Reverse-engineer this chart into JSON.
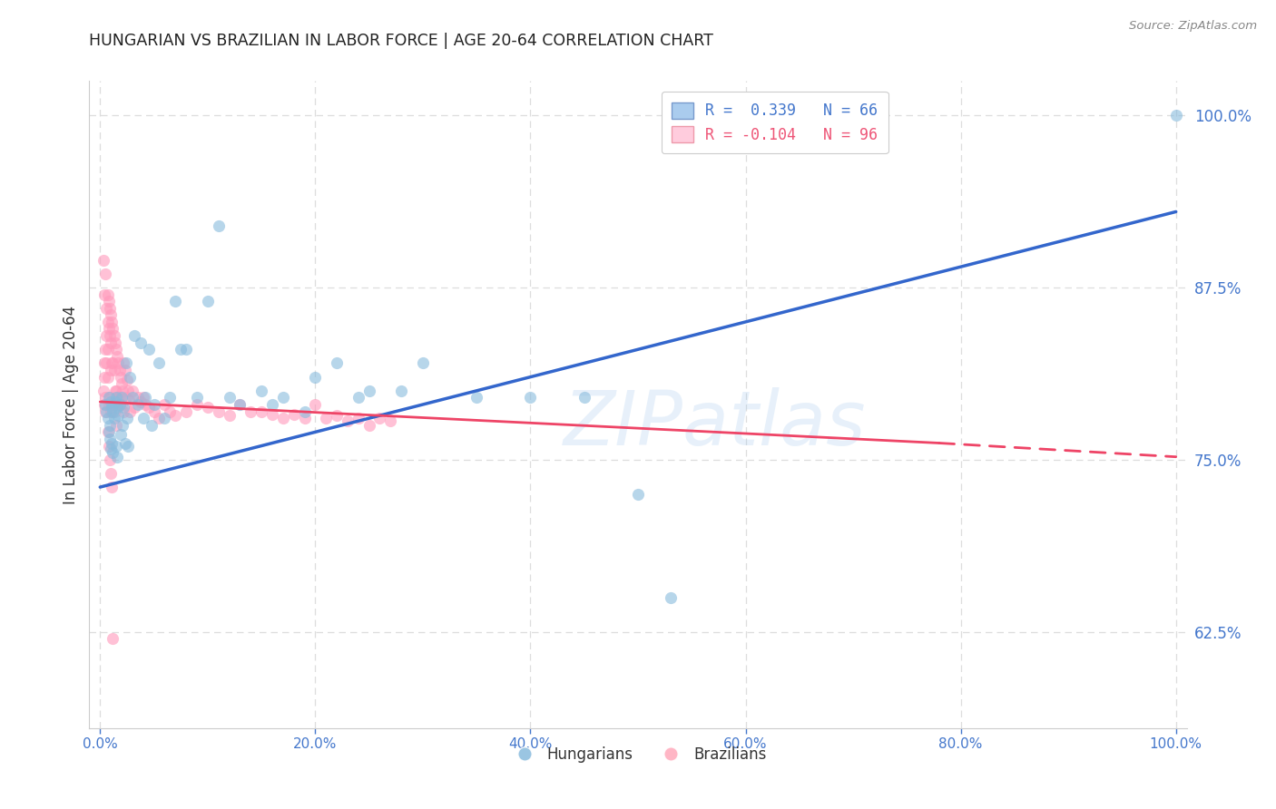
{
  "title": "HUNGARIAN VS BRAZILIAN IN LABOR FORCE | AGE 20-64 CORRELATION CHART",
  "source": "Source: ZipAtlas.com",
  "ylabel": "In Labor Force | Age 20-64",
  "ytick_labels": [
    "62.5%",
    "75.0%",
    "87.5%",
    "100.0%"
  ],
  "ytick_values": [
    0.625,
    0.75,
    0.875,
    1.0
  ],
  "xtick_labels": [
    "0.0%",
    "20.0%",
    "40.0%",
    "60.0%",
    "80.0%",
    "100.0%"
  ],
  "xtick_values": [
    0.0,
    0.2,
    0.4,
    0.6,
    0.8,
    1.0
  ],
  "xlim": [
    -0.01,
    1.01
  ],
  "ylim": [
    0.555,
    1.025
  ],
  "legend_entries": [
    {
      "label": "R =  0.339   N = 66",
      "color": "#4477cc"
    },
    {
      "label": "R = -0.104   N = 96",
      "color": "#ee5577"
    }
  ],
  "bottom_legend": [
    {
      "label": "Hungarians",
      "color": "#88bbdd"
    },
    {
      "label": "Brazilians",
      "color": "#ffaabb"
    }
  ],
  "blue_line": {
    "x0": 0.0,
    "y0": 0.73,
    "x1": 1.0,
    "y1": 0.93
  },
  "pink_line_solid": {
    "x0": 0.0,
    "y0": 0.792,
    "x1": 0.78,
    "y1": 0.762
  },
  "pink_line_dashed": {
    "x0": 0.78,
    "y0": 0.762,
    "x1": 1.0,
    "y1": 0.752
  },
  "watermark": "ZIPatlas",
  "background_color": "#ffffff",
  "dot_color_hungarian": "#88bbdd",
  "dot_color_brazilian": "#ff99bb",
  "dot_alpha": 0.6,
  "dot_size": 90,
  "grid_color": "#dddddd",
  "title_color": "#222222",
  "axis_color": "#4477cc",
  "hungarian_dots_x": [
    0.005,
    0.006,
    0.007,
    0.008,
    0.008,
    0.009,
    0.009,
    0.01,
    0.01,
    0.011,
    0.011,
    0.012,
    0.012,
    0.013,
    0.014,
    0.015,
    0.015,
    0.016,
    0.016,
    0.017,
    0.018,
    0.019,
    0.02,
    0.021,
    0.022,
    0.023,
    0.024,
    0.025,
    0.026,
    0.028,
    0.03,
    0.032,
    0.035,
    0.038,
    0.04,
    0.042,
    0.045,
    0.048,
    0.05,
    0.055,
    0.06,
    0.065,
    0.07,
    0.075,
    0.08,
    0.09,
    0.1,
    0.11,
    0.12,
    0.13,
    0.15,
    0.16,
    0.17,
    0.19,
    0.2,
    0.22,
    0.24,
    0.25,
    0.28,
    0.3,
    0.35,
    0.4,
    0.45,
    0.5,
    0.53,
    1.0
  ],
  "hungarian_dots_y": [
    0.79,
    0.785,
    0.78,
    0.795,
    0.77,
    0.775,
    0.765,
    0.792,
    0.758,
    0.788,
    0.762,
    0.785,
    0.755,
    0.78,
    0.792,
    0.795,
    0.76,
    0.788,
    0.752,
    0.782,
    0.79,
    0.768,
    0.795,
    0.775,
    0.788,
    0.762,
    0.82,
    0.78,
    0.76,
    0.81,
    0.795,
    0.84,
    0.79,
    0.835,
    0.78,
    0.795,
    0.83,
    0.775,
    0.79,
    0.82,
    0.78,
    0.795,
    0.865,
    0.83,
    0.83,
    0.795,
    0.865,
    0.92,
    0.795,
    0.79,
    0.8,
    0.79,
    0.795,
    0.785,
    0.81,
    0.82,
    0.795,
    0.8,
    0.8,
    0.82,
    0.795,
    0.795,
    0.795,
    0.725,
    0.65,
    1.0
  ],
  "brazilian_dots_x": [
    0.003,
    0.004,
    0.004,
    0.005,
    0.005,
    0.005,
    0.006,
    0.006,
    0.006,
    0.007,
    0.007,
    0.007,
    0.007,
    0.008,
    0.008,
    0.008,
    0.009,
    0.009,
    0.009,
    0.01,
    0.01,
    0.01,
    0.01,
    0.011,
    0.011,
    0.012,
    0.012,
    0.012,
    0.013,
    0.013,
    0.013,
    0.014,
    0.014,
    0.015,
    0.015,
    0.015,
    0.016,
    0.016,
    0.017,
    0.017,
    0.018,
    0.018,
    0.019,
    0.02,
    0.02,
    0.021,
    0.022,
    0.022,
    0.023,
    0.024,
    0.025,
    0.026,
    0.027,
    0.028,
    0.03,
    0.032,
    0.035,
    0.038,
    0.04,
    0.042,
    0.045,
    0.05,
    0.055,
    0.06,
    0.065,
    0.07,
    0.08,
    0.09,
    0.1,
    0.11,
    0.12,
    0.13,
    0.14,
    0.15,
    0.16,
    0.17,
    0.18,
    0.19,
    0.2,
    0.21,
    0.22,
    0.23,
    0.24,
    0.25,
    0.26,
    0.27,
    0.003,
    0.004,
    0.005,
    0.004,
    0.007,
    0.008,
    0.009,
    0.01,
    0.011,
    0.012
  ],
  "brazilian_dots_y": [
    0.8,
    0.81,
    0.82,
    0.83,
    0.795,
    0.785,
    0.86,
    0.84,
    0.82,
    0.87,
    0.85,
    0.83,
    0.81,
    0.865,
    0.845,
    0.79,
    0.86,
    0.84,
    0.795,
    0.855,
    0.835,
    0.815,
    0.785,
    0.85,
    0.82,
    0.845,
    0.82,
    0.79,
    0.84,
    0.815,
    0.785,
    0.835,
    0.8,
    0.83,
    0.8,
    0.775,
    0.825,
    0.795,
    0.82,
    0.795,
    0.815,
    0.79,
    0.81,
    0.805,
    0.79,
    0.8,
    0.82,
    0.785,
    0.815,
    0.795,
    0.808,
    0.8,
    0.793,
    0.785,
    0.8,
    0.788,
    0.795,
    0.792,
    0.795,
    0.79,
    0.788,
    0.785,
    0.78,
    0.79,
    0.785,
    0.782,
    0.785,
    0.79,
    0.788,
    0.785,
    0.782,
    0.79,
    0.785,
    0.785,
    0.783,
    0.78,
    0.783,
    0.78,
    0.79,
    0.78,
    0.782,
    0.778,
    0.78,
    0.775,
    0.78,
    0.778,
    0.895,
    0.87,
    0.885,
    0.79,
    0.77,
    0.76,
    0.75,
    0.74,
    0.73,
    0.62
  ]
}
